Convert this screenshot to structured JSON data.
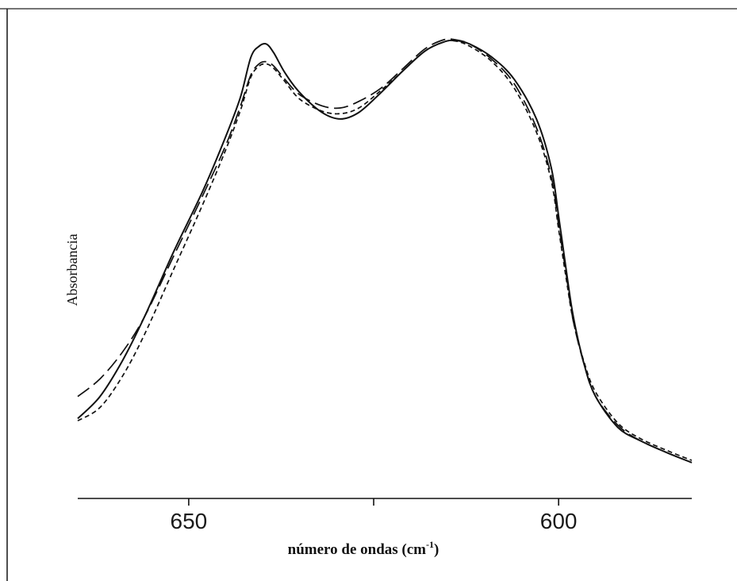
{
  "chart_data": {
    "type": "line",
    "title": "",
    "xlabel": "número de ondas (cm",
    "xlabel_sup": "-1",
    "xlabel_close": ")",
    "ylabel": "Absorbancia",
    "xlim": [
      665,
      582
    ],
    "ylim": [
      0,
      1
    ],
    "x_reversed": true,
    "grid": false,
    "legend": "none",
    "x_ticks": [
      {
        "value": 650,
        "label": "650"
      },
      {
        "value": 625,
        "label": ""
      },
      {
        "value": 600,
        "label": "600"
      }
    ],
    "series": [
      {
        "style": "solid",
        "points": [
          [
            665,
            0.14
          ],
          [
            662,
            0.19
          ],
          [
            659,
            0.27
          ],
          [
            656,
            0.37
          ],
          [
            652,
            0.52
          ],
          [
            648,
            0.66
          ],
          [
            645,
            0.78
          ],
          [
            643,
            0.87
          ],
          [
            641.6,
            0.96
          ],
          [
            640.5,
            0.985
          ],
          [
            639.5,
            0.99
          ],
          [
            638.5,
            0.97
          ],
          [
            637,
            0.925
          ],
          [
            635,
            0.88
          ],
          [
            632,
            0.835
          ],
          [
            629.5,
            0.82
          ],
          [
            627,
            0.835
          ],
          [
            624,
            0.88
          ],
          [
            621,
            0.93
          ],
          [
            618,
            0.975
          ],
          [
            615.5,
            0.995
          ],
          [
            614,
            0.998
          ],
          [
            612,
            0.99
          ],
          [
            609,
            0.96
          ],
          [
            606,
            0.91
          ],
          [
            603,
            0.82
          ],
          [
            601,
            0.71
          ],
          [
            600,
            0.6
          ],
          [
            599,
            0.48
          ],
          [
            598,
            0.37
          ],
          [
            596.5,
            0.26
          ],
          [
            595,
            0.19
          ],
          [
            592,
            0.12
          ],
          [
            589,
            0.09
          ],
          [
            585,
            0.06
          ],
          [
            582,
            0.04
          ]
        ]
      },
      {
        "style": "long-dash",
        "points": [
          [
            665,
            0.19
          ],
          [
            662,
            0.23
          ],
          [
            659,
            0.29
          ],
          [
            656,
            0.37
          ],
          [
            652,
            0.51
          ],
          [
            648,
            0.65
          ],
          [
            645,
            0.76
          ],
          [
            643,
            0.85
          ],
          [
            641.6,
            0.92
          ],
          [
            640.5,
            0.945
          ],
          [
            639.5,
            0.95
          ],
          [
            638.5,
            0.94
          ],
          [
            637,
            0.91
          ],
          [
            635,
            0.875
          ],
          [
            632,
            0.85
          ],
          [
            629.5,
            0.845
          ],
          [
            627,
            0.86
          ],
          [
            624,
            0.89
          ],
          [
            621,
            0.935
          ],
          [
            618,
            0.98
          ],
          [
            615.5,
            1.0
          ],
          [
            614,
            1.0
          ],
          [
            612,
            0.99
          ],
          [
            609,
            0.955
          ],
          [
            606,
            0.9
          ],
          [
            603,
            0.8
          ],
          [
            601,
            0.69
          ],
          [
            600,
            0.58
          ],
          [
            599,
            0.47
          ],
          [
            598,
            0.36
          ],
          [
            596.5,
            0.26
          ],
          [
            595,
            0.19
          ],
          [
            592,
            0.125
          ],
          [
            589,
            0.09
          ],
          [
            585,
            0.06
          ],
          [
            582,
            0.04
          ]
        ]
      },
      {
        "style": "short-dash",
        "points": [
          [
            665,
            0.135
          ],
          [
            662,
            0.165
          ],
          [
            659,
            0.235
          ],
          [
            656,
            0.33
          ],
          [
            652,
            0.48
          ],
          [
            648,
            0.63
          ],
          [
            645,
            0.75
          ],
          [
            643,
            0.84
          ],
          [
            641.6,
            0.915
          ],
          [
            640.5,
            0.94
          ],
          [
            639.5,
            0.945
          ],
          [
            638.5,
            0.935
          ],
          [
            637,
            0.905
          ],
          [
            635,
            0.865
          ],
          [
            632,
            0.838
          ],
          [
            629.5,
            0.832
          ],
          [
            627,
            0.845
          ],
          [
            624,
            0.885
          ],
          [
            621,
            0.93
          ],
          [
            618,
            0.975
          ],
          [
            615.5,
            0.995
          ],
          [
            614,
            0.997
          ],
          [
            612,
            0.985
          ],
          [
            609,
            0.95
          ],
          [
            606,
            0.89
          ],
          [
            603,
            0.79
          ],
          [
            601,
            0.68
          ],
          [
            600,
            0.57
          ],
          [
            599,
            0.46
          ],
          [
            598,
            0.36
          ],
          [
            596.5,
            0.265
          ],
          [
            595,
            0.2
          ],
          [
            592,
            0.13
          ],
          [
            589,
            0.095
          ],
          [
            585,
            0.065
          ],
          [
            582,
            0.045
          ]
        ]
      }
    ]
  }
}
